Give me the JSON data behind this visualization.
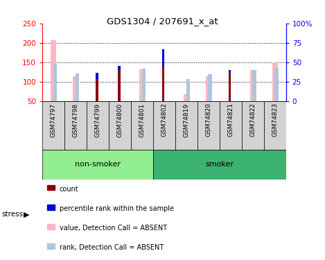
{
  "title": "GDS1304 / 207691_x_at",
  "samples": [
    "GSM74797",
    "GSM74798",
    "GSM74799",
    "GSM74800",
    "GSM74801",
    "GSM74802",
    "GSM74819",
    "GSM74820",
    "GSM74821",
    "GSM74822",
    "GSM74823"
  ],
  "non_smoker_indices": [
    0,
    1,
    2,
    3,
    4
  ],
  "smoker_indices": [
    5,
    6,
    7,
    8,
    9,
    10
  ],
  "count_values": [
    null,
    null,
    108,
    141,
    null,
    183,
    null,
    null,
    124,
    null,
    null
  ],
  "percentile_values": [
    null,
    null,
    123,
    130,
    null,
    138,
    null,
    null,
    131,
    null,
    null
  ],
  "absent_value_values": [
    206,
    115,
    null,
    null,
    133,
    null,
    68,
    115,
    null,
    130,
    150
  ],
  "absent_rank_values": [
    147,
    122,
    null,
    null,
    134,
    null,
    107,
    120,
    null,
    130,
    135
  ],
  "ylim_left": [
    50,
    250
  ],
  "yticks_left": [
    50,
    100,
    150,
    200,
    250
  ],
  "ytick_labels_left": [
    "50",
    "100",
    "150",
    "200",
    "250"
  ],
  "yticks_right_pct": [
    0,
    25,
    50,
    75,
    100
  ],
  "ytick_labels_right": [
    "0",
    "25",
    "50",
    "75",
    "100%"
  ],
  "dotted_lines": [
    100,
    150,
    200
  ],
  "count_color": "#8B0000",
  "percentile_color": "#0000CD",
  "absent_value_color": "#FFB6C1",
  "absent_rank_color": "#B0C4DE",
  "ns_group_color": "#90EE90",
  "sm_group_color": "#3CB371",
  "sample_bg_color": "#D3D3D3",
  "legend_items": [
    {
      "color": "#8B0000",
      "label": "count"
    },
    {
      "color": "#0000CD",
      "label": "percentile rank within the sample"
    },
    {
      "color": "#FFB6C1",
      "label": "value, Detection Call = ABSENT"
    },
    {
      "color": "#B0C4DE",
      "label": "rank, Detection Call = ABSENT"
    }
  ]
}
